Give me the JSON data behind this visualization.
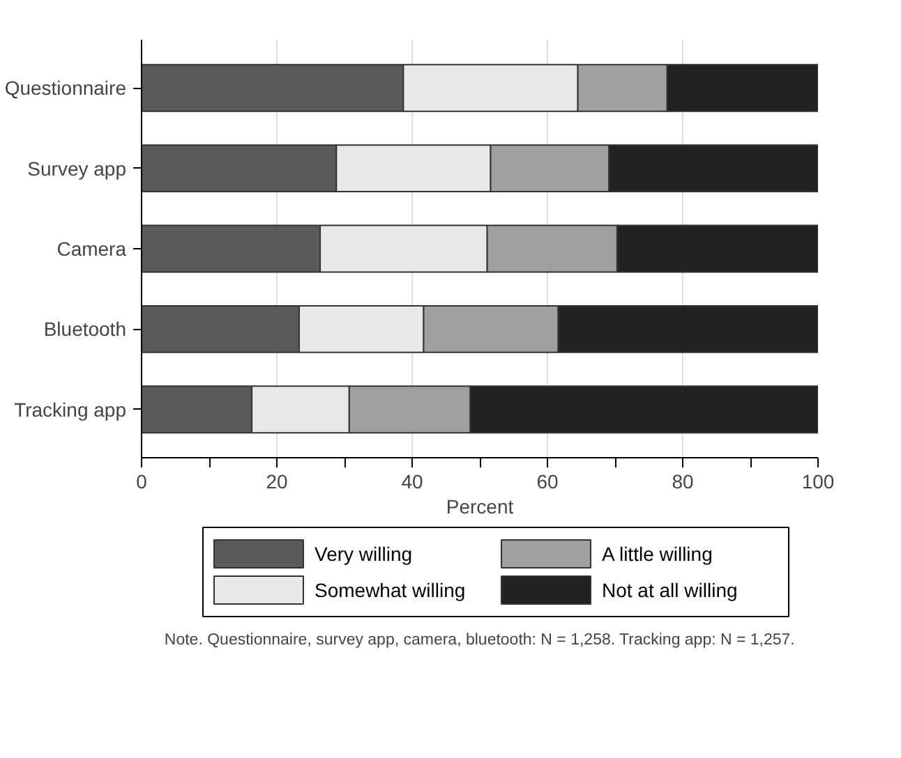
{
  "chart_data": {
    "type": "bar",
    "orientation": "horizontal",
    "stacked": true,
    "xlabel": "Percent",
    "categories": [
      "Questionnaire",
      "Survey app",
      "Camera",
      "Bluetooth",
      "Tracking app"
    ],
    "series": [
      {
        "name": "Very willing",
        "color": "#5a5a5a",
        "values": [
          38.7,
          28.8,
          26.4,
          23.3,
          16.3
        ]
      },
      {
        "name": "Somewhat willing",
        "color": "#e8e8e8",
        "values": [
          25.8,
          22.8,
          24.7,
          18.4,
          14.4
        ]
      },
      {
        "name": "A little willing",
        "color": "#a0a0a0",
        "values": [
          13.2,
          17.5,
          19.2,
          19.9,
          17.9
        ]
      },
      {
        "name": "Not at all willing",
        "color": "#222222",
        "values": [
          22.3,
          30.9,
          29.7,
          38.4,
          51.4
        ]
      }
    ],
    "xlim": [
      0,
      100
    ],
    "xticks": [
      0,
      {
        "value": 10,
        "label": null
      },
      20,
      {
        "value": 30,
        "label": null
      },
      40,
      {
        "value": 50,
        "label": null
      },
      60,
      {
        "value": 70,
        "label": null
      },
      80,
      {
        "value": 90,
        "label": null
      },
      100
    ],
    "grid": "x",
    "legend": "bottom",
    "annotations": [
      "Note. Questionnaire, survey app, camera, bluetooth: N = 1,258. Tracking app: N = 1,257."
    ]
  }
}
